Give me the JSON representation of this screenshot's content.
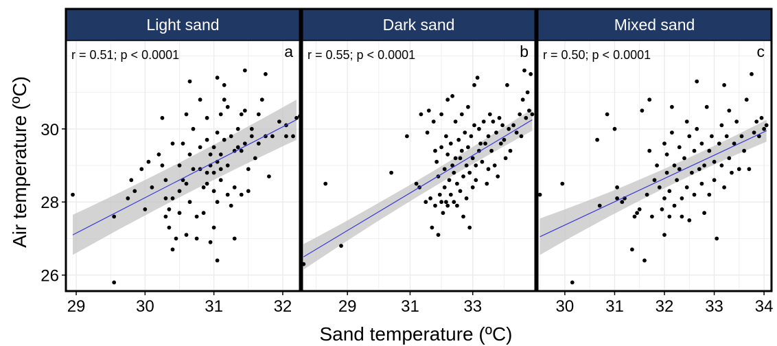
{
  "colors": {
    "strip_fill": "#203864",
    "strip_text": "#ffffff",
    "panel_border": "#000000",
    "grid": "#ebebeb",
    "points": "#000000",
    "fit_line": "#3a3ad6",
    "confidence_band": "#c4c4c4"
  },
  "chart_data": {
    "type": "scatter",
    "xlabel": "Sand temperature (ºC)",
    "ylabel": "Air temperature (ºC)",
    "ylim": [
      25.6,
      32.4
    ],
    "yticks": [
      26,
      28,
      30
    ],
    "grid": true,
    "panels": [
      {
        "title": "Light sand",
        "letter": "a",
        "stat": "r = 0.51; p < 0.0001",
        "xlim": [
          28.85,
          32.25
        ],
        "xticks": [
          29,
          30,
          31,
          32
        ],
        "fit": {
          "x": [
            28.95,
            32.2
          ],
          "y": [
            27.1,
            30.25
          ],
          "band_halfwidth": [
            0.55,
            0.4,
            0.55
          ]
        },
        "points": [
          [
            28.95,
            28.2
          ],
          [
            29.55,
            25.8
          ],
          [
            29.55,
            27.6
          ],
          [
            29.75,
            28.1
          ],
          [
            29.8,
            28.6
          ],
          [
            29.85,
            28.3
          ],
          [
            29.95,
            28.9
          ],
          [
            30.05,
            29.1
          ],
          [
            30.0,
            27.8
          ],
          [
            30.1,
            28.4
          ],
          [
            30.2,
            29.3
          ],
          [
            30.25,
            30.3
          ],
          [
            30.25,
            29.0
          ],
          [
            30.3,
            28.6
          ],
          [
            30.3,
            28.1
          ],
          [
            30.3,
            27.6
          ],
          [
            30.35,
            27.3
          ],
          [
            30.35,
            27.8
          ],
          [
            30.4,
            29.6
          ],
          [
            30.4,
            28.1
          ],
          [
            30.4,
            26.7
          ],
          [
            30.45,
            27.0
          ],
          [
            30.5,
            29.0
          ],
          [
            30.5,
            28.3
          ],
          [
            30.5,
            27.7
          ],
          [
            30.55,
            29.6
          ],
          [
            30.55,
            28.6
          ],
          [
            30.6,
            30.4
          ],
          [
            30.6,
            28.5
          ],
          [
            30.6,
            27.1
          ],
          [
            30.65,
            31.3
          ],
          [
            30.65,
            29.3
          ],
          [
            30.65,
            28.0
          ],
          [
            30.7,
            30.0
          ],
          [
            30.7,
            28.9
          ],
          [
            30.75,
            27.6
          ],
          [
            30.75,
            27.0
          ],
          [
            30.8,
            30.8
          ],
          [
            30.8,
            29.5
          ],
          [
            30.8,
            28.9
          ],
          [
            30.85,
            28.4
          ],
          [
            30.85,
            27.7
          ],
          [
            30.9,
            30.3
          ],
          [
            30.9,
            29.7
          ],
          [
            30.9,
            28.8
          ],
          [
            30.9,
            28.5
          ],
          [
            30.95,
            29.3
          ],
          [
            30.95,
            29.0
          ],
          [
            30.95,
            26.9
          ],
          [
            31.0,
            29.5
          ],
          [
            31.0,
            28.8
          ],
          [
            31.0,
            28.3
          ],
          [
            31.0,
            27.3
          ],
          [
            31.05,
            31.4
          ],
          [
            31.05,
            29.9
          ],
          [
            31.05,
            29.1
          ],
          [
            31.05,
            28.0
          ],
          [
            31.05,
            26.4
          ],
          [
            31.1,
            30.4
          ],
          [
            31.1,
            29.3
          ],
          [
            31.1,
            28.9
          ],
          [
            31.1,
            28.6
          ],
          [
            31.15,
            31.2
          ],
          [
            31.15,
            30.8
          ],
          [
            31.15,
            29.7
          ],
          [
            31.2,
            30.6
          ],
          [
            31.2,
            29.0
          ],
          [
            31.2,
            28.2
          ],
          [
            31.25,
            29.8
          ],
          [
            31.25,
            27.9
          ],
          [
            31.3,
            29.4
          ],
          [
            31.3,
            28.4
          ],
          [
            31.3,
            27.0
          ],
          [
            31.35,
            30.0
          ],
          [
            31.35,
            29.5
          ],
          [
            31.4,
            30.4
          ],
          [
            31.4,
            29.4
          ],
          [
            31.4,
            28.2
          ],
          [
            31.45,
            31.6
          ],
          [
            31.45,
            30.5
          ],
          [
            31.45,
            29.6
          ],
          [
            31.5,
            28.9
          ],
          [
            31.5,
            28.3
          ],
          [
            31.55,
            30.0
          ],
          [
            31.55,
            29.8
          ],
          [
            31.6,
            29.2
          ],
          [
            31.65,
            30.4
          ],
          [
            31.65,
            29.6
          ],
          [
            31.7,
            30.8
          ],
          [
            31.75,
            31.5
          ],
          [
            31.75,
            29.8
          ],
          [
            31.8,
            28.7
          ],
          [
            31.85,
            29.8
          ],
          [
            31.95,
            30.2
          ],
          [
            32.05,
            30.1
          ],
          [
            32.05,
            29.8
          ],
          [
            32.15,
            29.8
          ],
          [
            32.2,
            30.3
          ],
          [
            32.25,
            30.35
          ]
        ]
      },
      {
        "title": "Dark sand",
        "letter": "b",
        "stat": "r = 0.55; p < 0.0001",
        "xlim": [
          27.55,
          35.0
        ],
        "xticks": [
          29,
          31,
          33
        ],
        "fit": {
          "x": [
            27.6,
            34.9
          ],
          "y": [
            26.5,
            30.25
          ],
          "band_halfwidth": [
            0.35,
            0.12,
            0.3
          ]
        },
        "points": [
          [
            27.6,
            26.3
          ],
          [
            28.3,
            28.5
          ],
          [
            28.8,
            26.8
          ],
          [
            30.4,
            28.8
          ],
          [
            30.9,
            29.8
          ],
          [
            31.2,
            28.5
          ],
          [
            31.3,
            28.4
          ],
          [
            31.35,
            30.4
          ],
          [
            31.5,
            28.0
          ],
          [
            31.55,
            29.9
          ],
          [
            31.6,
            30.5
          ],
          [
            31.65,
            28.1
          ],
          [
            31.7,
            27.3
          ],
          [
            31.75,
            30.2
          ],
          [
            31.8,
            29.4
          ],
          [
            31.8,
            27.9
          ],
          [
            31.85,
            29.1
          ],
          [
            31.9,
            28.7
          ],
          [
            31.9,
            27.1
          ],
          [
            31.95,
            28.2
          ],
          [
            32.0,
            30.4
          ],
          [
            32.0,
            29.5
          ],
          [
            32.0,
            28.0
          ],
          [
            32.05,
            27.7
          ],
          [
            32.1,
            28.9
          ],
          [
            32.1,
            28.4
          ],
          [
            32.15,
            29.8
          ],
          [
            32.15,
            28.0
          ],
          [
            32.2,
            30.8
          ],
          [
            32.2,
            29.3
          ],
          [
            32.2,
            27.9
          ],
          [
            32.25,
            28.6
          ],
          [
            32.3,
            29.6
          ],
          [
            32.3,
            28.2
          ],
          [
            32.35,
            30.9
          ],
          [
            32.35,
            29.0
          ],
          [
            32.4,
            28.8
          ],
          [
            32.4,
            28.0
          ],
          [
            32.45,
            30.2
          ],
          [
            32.45,
            29.2
          ],
          [
            32.5,
            27.9
          ],
          [
            32.5,
            28.5
          ],
          [
            32.55,
            29.7
          ],
          [
            32.6,
            29.2
          ],
          [
            32.6,
            28.3
          ],
          [
            32.65,
            30.4
          ],
          [
            32.65,
            29.4
          ],
          [
            32.7,
            28.7
          ],
          [
            32.7,
            27.6
          ],
          [
            32.75,
            29.9
          ],
          [
            32.8,
            29.0
          ],
          [
            32.8,
            28.1
          ],
          [
            32.85,
            30.6
          ],
          [
            32.85,
            29.5
          ],
          [
            32.9,
            28.8
          ],
          [
            32.9,
            27.3
          ],
          [
            32.95,
            29.8
          ],
          [
            33.0,
            29.2
          ],
          [
            33.0,
            28.4
          ],
          [
            33.05,
            31.2
          ],
          [
            33.05,
            30.1
          ],
          [
            33.1,
            29.0
          ],
          [
            33.1,
            28.6
          ],
          [
            33.15,
            31.4
          ],
          [
            33.2,
            30.0
          ],
          [
            33.2,
            29.4
          ],
          [
            33.25,
            29.6
          ],
          [
            33.3,
            29.1
          ],
          [
            33.35,
            30.2
          ],
          [
            33.4,
            29.6
          ],
          [
            33.45,
            28.5
          ],
          [
            33.5,
            29.8
          ],
          [
            33.5,
            28.9
          ],
          [
            33.55,
            30.4
          ],
          [
            33.6,
            29.4
          ],
          [
            33.65,
            30.2
          ],
          [
            33.7,
            29.0
          ],
          [
            33.75,
            29.9
          ],
          [
            33.8,
            28.7
          ],
          [
            33.85,
            30.3
          ],
          [
            33.9,
            29.6
          ],
          [
            33.95,
            30.1
          ],
          [
            34.0,
            29.7
          ],
          [
            34.05,
            29.2
          ],
          [
            34.1,
            31.2
          ],
          [
            34.15,
            30.0
          ],
          [
            34.2,
            29.4
          ],
          [
            34.3,
            30.1
          ],
          [
            34.4,
            29.9
          ],
          [
            34.5,
            30.4
          ],
          [
            34.55,
            29.8
          ],
          [
            34.6,
            30.8
          ],
          [
            34.65,
            31.6
          ],
          [
            34.7,
            30.3
          ],
          [
            34.75,
            31.0
          ],
          [
            34.8,
            30.5
          ],
          [
            34.85,
            31.5
          ],
          [
            34.9,
            30.4
          ]
        ]
      },
      {
        "title": "Mixed sand",
        "letter": "c",
        "stat": "r = 0.50; p < 0.0001",
        "xlim": [
          29.45,
          34.15
        ],
        "xticks": [
          30,
          31,
          32,
          33,
          34
        ],
        "fit": {
          "x": [
            29.5,
            34.05
          ],
          "y": [
            27.05,
            29.95
          ],
          "band_halfwidth": [
            0.5,
            0.15,
            0.3
          ]
        },
        "points": [
          [
            29.5,
            28.2
          ],
          [
            29.95,
            28.5
          ],
          [
            30.15,
            25.8
          ],
          [
            30.65,
            29.7
          ],
          [
            30.7,
            27.9
          ],
          [
            30.85,
            30.4
          ],
          [
            31.0,
            30.0
          ],
          [
            31.05,
            28.4
          ],
          [
            31.05,
            28.1
          ],
          [
            31.15,
            28.0
          ],
          [
            31.2,
            28.1
          ],
          [
            31.35,
            26.7
          ],
          [
            31.4,
            27.6
          ],
          [
            31.45,
            27.7
          ],
          [
            31.5,
            27.8
          ],
          [
            31.55,
            30.5
          ],
          [
            31.6,
            26.4
          ],
          [
            31.65,
            28.2
          ],
          [
            31.7,
            30.8
          ],
          [
            31.7,
            29.4
          ],
          [
            31.75,
            27.6
          ],
          [
            31.8,
            28.6
          ],
          [
            31.85,
            29.0
          ],
          [
            31.9,
            28.4
          ],
          [
            31.95,
            27.8
          ],
          [
            32.0,
            29.6
          ],
          [
            32.0,
            28.1
          ],
          [
            32.0,
            27.1
          ],
          [
            32.05,
            29.3
          ],
          [
            32.05,
            28.8
          ],
          [
            32.1,
            28.3
          ],
          [
            32.1,
            27.6
          ],
          [
            32.15,
            30.6
          ],
          [
            32.15,
            29.9
          ],
          [
            32.2,
            29.0
          ],
          [
            32.2,
            27.9
          ],
          [
            32.25,
            28.6
          ],
          [
            32.3,
            29.5
          ],
          [
            32.3,
            28.9
          ],
          [
            32.35,
            28.1
          ],
          [
            32.35,
            27.6
          ],
          [
            32.4,
            29.2
          ],
          [
            32.45,
            30.2
          ],
          [
            32.45,
            28.4
          ],
          [
            32.5,
            29.8
          ],
          [
            32.5,
            27.5
          ],
          [
            32.55,
            28.8
          ],
          [
            32.6,
            29.4
          ],
          [
            32.6,
            28.2
          ],
          [
            32.65,
            31.3
          ],
          [
            32.65,
            30.0
          ],
          [
            32.7,
            28.9
          ],
          [
            32.75,
            29.6
          ],
          [
            32.75,
            28.5
          ],
          [
            32.8,
            29.0
          ],
          [
            32.8,
            27.7
          ],
          [
            32.85,
            30.6
          ],
          [
            32.9,
            29.4
          ],
          [
            32.9,
            28.2
          ],
          [
            32.95,
            29.8
          ],
          [
            33.0,
            29.1
          ],
          [
            33.0,
            28.6
          ],
          [
            33.05,
            27.0
          ],
          [
            33.1,
            29.6
          ],
          [
            33.15,
            30.1
          ],
          [
            33.15,
            29.0
          ],
          [
            33.2,
            31.2
          ],
          [
            33.2,
            28.4
          ],
          [
            33.25,
            29.8
          ],
          [
            33.3,
            30.5
          ],
          [
            33.3,
            29.2
          ],
          [
            33.35,
            28.8
          ],
          [
            33.4,
            29.6
          ],
          [
            33.45,
            30.2
          ],
          [
            33.5,
            28.9
          ],
          [
            33.55,
            29.8
          ],
          [
            33.6,
            29.4
          ],
          [
            33.65,
            30.8
          ],
          [
            33.7,
            28.9
          ],
          [
            33.75,
            31.5
          ],
          [
            33.8,
            29.9
          ],
          [
            33.85,
            30.2
          ],
          [
            33.9,
            29.8
          ],
          [
            33.95,
            30.3
          ],
          [
            34.0,
            30.0
          ],
          [
            34.05,
            30.1
          ]
        ]
      }
    ]
  }
}
